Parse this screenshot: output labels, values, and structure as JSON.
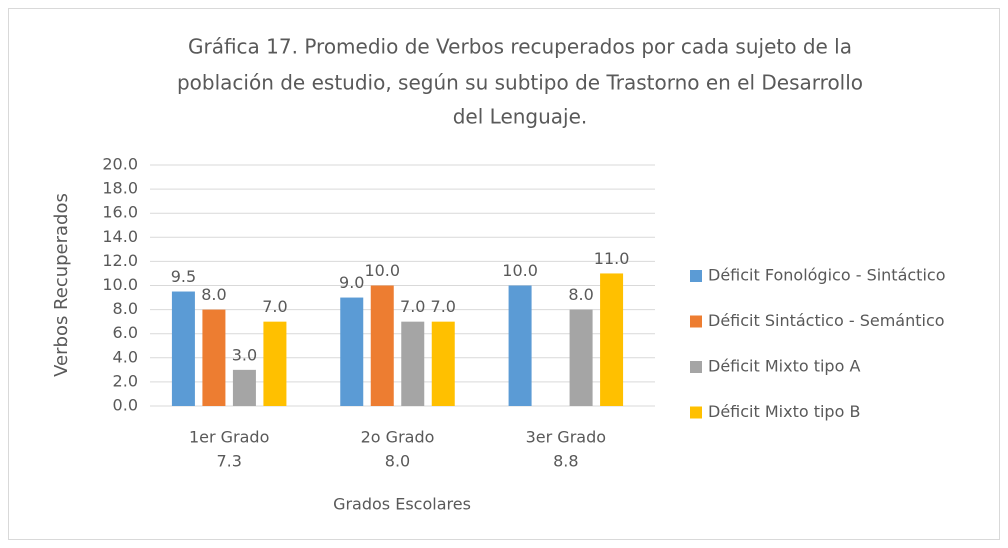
{
  "chart_data": {
    "type": "bar",
    "title": [
      "Gráfica 17. Promedio de Verbos recuperados por cada sujeto de la",
      "población de estudio, según su subtipo de Trastorno en el Desarrollo",
      "del Lenguaje."
    ],
    "x_label": "Grados Escolares",
    "y_label": "Verbos Recuperados",
    "categories": [
      [
        "1er Grado",
        "7.3"
      ],
      [
        "2o Grado",
        "8.0"
      ],
      [
        "3er Grado",
        "8.8"
      ]
    ],
    "series": [
      {
        "name": "Déficit Fonológico - Sintáctico",
        "color": "#5b9bd5",
        "values": [
          9.5,
          9,
          10
        ],
        "value_labels": [
          "9.5",
          "9.0",
          "10.0"
        ]
      },
      {
        "name": "Déficit Sintáctico - Semántico",
        "color": "#ed7d31",
        "values": [
          8,
          10,
          null
        ],
        "value_labels": [
          "8.0",
          "10.0",
          null
        ]
      },
      {
        "name": "Déficit Mixto tipo A",
        "color": "#a5a5a5",
        "values": [
          3,
          7,
          8
        ],
        "value_labels": [
          "3.0",
          "7.0",
          "8.0"
        ]
      },
      {
        "name": "Déficit Mixto tipo B",
        "color": "#ffc000",
        "values": [
          7,
          7,
          11
        ],
        "value_labels": [
          "7.0",
          "7.0",
          "11.0"
        ]
      }
    ],
    "ylim": [
      0,
      20
    ],
    "yticks": [
      {
        "value": 0,
        "label": "0.0"
      },
      {
        "value": 2,
        "label": "2.0"
      },
      {
        "value": 4,
        "label": "4.0"
      },
      {
        "value": 6,
        "label": "6.0"
      },
      {
        "value": 8,
        "label": "8.0"
      },
      {
        "value": 10,
        "label": "10.0"
      },
      {
        "value": 12,
        "label": "12.0"
      },
      {
        "value": 14,
        "label": "14.0"
      },
      {
        "value": 16,
        "label": "16.0"
      },
      {
        "value": 18,
        "label": "18.0"
      },
      {
        "value": 20,
        "label": "20.0"
      }
    ],
    "grid": true,
    "legend": "right"
  }
}
